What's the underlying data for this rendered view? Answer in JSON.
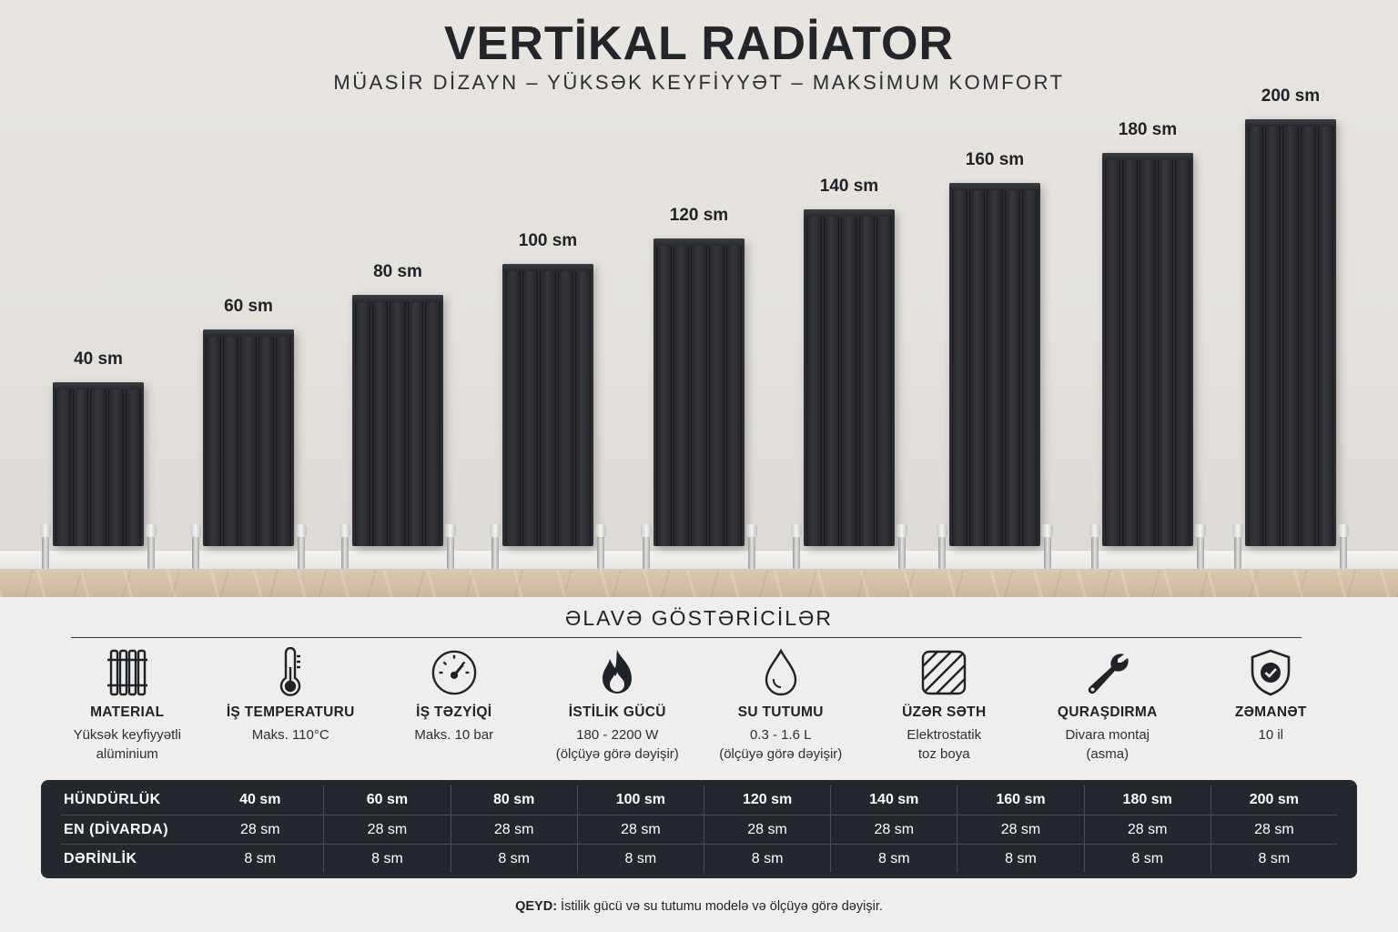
{
  "title": "VERTİKAL RADİATOR",
  "subtitle": "MÜASİR DİZAYN – YÜKSƏK KEYFİYYƏT – MAKSİMUM KOMFORT",
  "radiators": [
    {
      "label": "40 sm"
    },
    {
      "label": "60 sm"
    },
    {
      "label": "80 sm"
    },
    {
      "label": "100 sm"
    },
    {
      "label": "120 sm"
    },
    {
      "label": "140 sm"
    },
    {
      "label": "160 sm"
    },
    {
      "label": "180 sm"
    },
    {
      "label": "200 sm"
    }
  ],
  "section_title": "ƏLAVƏ GÖSTƏRİCİLƏR",
  "features": [
    {
      "icon": "radiator-icon",
      "title": "MATERIAL",
      "desc1": "Yüksək keyfiyyətli",
      "desc2": "alüminium"
    },
    {
      "icon": "thermometer-icon",
      "title": "İŞ TEMPERATURU",
      "desc1": "Maks. 110°C",
      "desc2": ""
    },
    {
      "icon": "gauge-icon",
      "title": "İŞ TƏZYİQİ",
      "desc1": "Maks. 10 bar",
      "desc2": ""
    },
    {
      "icon": "flame-icon",
      "title": "İSTİLİK GÜCÜ",
      "desc1": "180 - 2200 W",
      "desc2": "(ölçüyə görə dəyişir)"
    },
    {
      "icon": "water-drop-icon",
      "title": "SU TUTUMU",
      "desc1": "0.3 - 1.6 L",
      "desc2": "(ölçüyə görə dəyişir)"
    },
    {
      "icon": "surface-texture-icon",
      "title": "ÜZƏR SƏTH",
      "desc1": "Elektrostatik",
      "desc2": "toz boya"
    },
    {
      "icon": "wrench-icon",
      "title": "QURAŞDIRMA",
      "desc1": "Divara montaj",
      "desc2": "(asma)"
    },
    {
      "icon": "shield-check-icon",
      "title": "ZƏMANƏT",
      "desc1": "10 il",
      "desc2": ""
    }
  ],
  "table": {
    "rows": [
      {
        "header": "HÜNDÜRLÜK",
        "cells": [
          "40 sm",
          "60 sm",
          "80 sm",
          "100 sm",
          "120 sm",
          "140 sm",
          "160 sm",
          "180 sm",
          "200 sm"
        ]
      },
      {
        "header": "EN (DİVARDA)",
        "cells": [
          "28 sm",
          "28 sm",
          "28 sm",
          "28 sm",
          "28 sm",
          "28 sm",
          "28 sm",
          "28 sm",
          "28 sm"
        ]
      },
      {
        "header": "DƏRİNLİK",
        "cells": [
          "8 sm",
          "8 sm",
          "8 sm",
          "8 sm",
          "8 sm",
          "8 sm",
          "8 sm",
          "8 sm",
          "8 sm"
        ]
      }
    ]
  },
  "note": {
    "label": "QEYD:",
    "text": " İstilik gücü və su tutumu modelə və ölçüyə görə dəyişir."
  }
}
